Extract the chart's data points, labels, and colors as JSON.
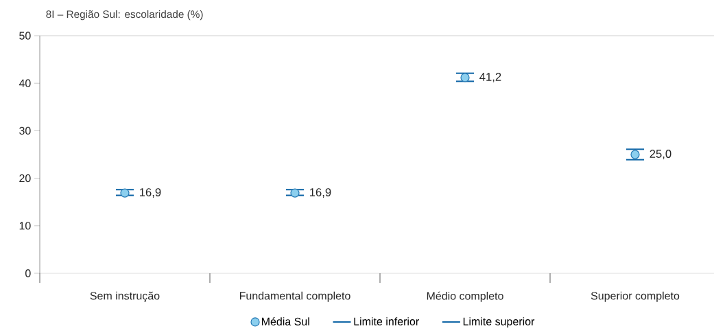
{
  "chart_data": {
    "type": "scatter",
    "title": "8I – Região Sul: escolaridade (%)",
    "categories": [
      "Sem instrução",
      "Fundamental completo",
      "Médio completo",
      "Superior completo"
    ],
    "series": [
      {
        "name": "Média Sul",
        "color": "#8ccfee",
        "marker": "circle",
        "values": [
          16.9,
          16.9,
          41.2,
          25.0
        ],
        "value_labels": [
          "16,9",
          "16,9",
          "41,2",
          "25,0"
        ],
        "errors": [
          [
            16.4,
            17.6
          ],
          [
            16.4,
            17.6
          ],
          [
            40.4,
            42.1
          ],
          [
            23.9,
            26.1
          ]
        ]
      },
      {
        "name": "Limite inferior",
        "color": "#0b63a5",
        "values": [
          null,
          null,
          null,
          null
        ]
      },
      {
        "name": "Limite superior",
        "color": "#0b63a5",
        "values": [
          null,
          null,
          null,
          null
        ]
      }
    ],
    "ylim": [
      0,
      50
    ],
    "yticks": [
      0,
      10,
      20,
      30,
      40,
      50
    ],
    "legend": "bottom"
  }
}
